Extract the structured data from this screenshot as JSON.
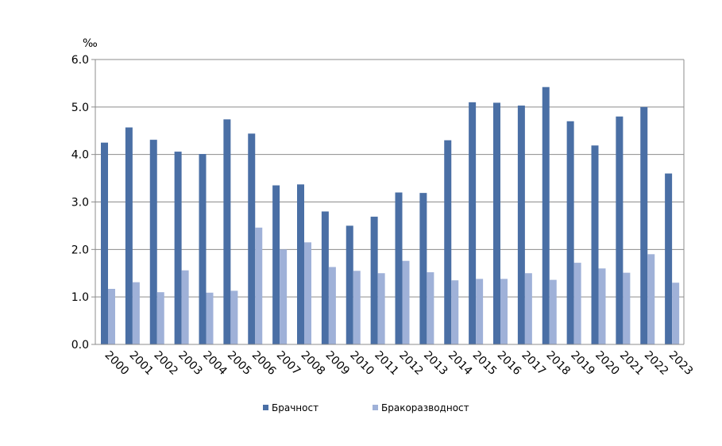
{
  "chart_data": {
    "type": "bar",
    "unit_label": "‰",
    "categories": [
      "2000",
      "2001",
      "2002",
      "2003",
      "2004",
      "2005",
      "2006",
      "2007",
      "2008",
      "2009",
      "2010",
      "2011",
      "2012",
      "2013",
      "2014",
      "2015",
      "2016",
      "2017",
      "2018",
      "2019",
      "2020",
      "2021",
      "2022",
      "2023"
    ],
    "series": [
      {
        "name": "Брачност",
        "color": "#4a6fa5",
        "values": [
          4.25,
          4.57,
          4.31,
          4.06,
          4.01,
          4.74,
          4.44,
          3.35,
          3.37,
          2.8,
          2.5,
          2.69,
          3.2,
          3.19,
          4.3,
          5.1,
          5.09,
          5.03,
          5.42,
          4.7,
          4.19,
          4.8,
          5.0,
          3.6
        ]
      },
      {
        "name": "Бракоразводност",
        "color": "#9fb1d8",
        "values": [
          1.17,
          1.31,
          1.1,
          1.56,
          1.09,
          1.13,
          2.46,
          2.0,
          2.15,
          1.63,
          1.55,
          1.5,
          1.76,
          1.52,
          1.35,
          1.38,
          1.38,
          1.5,
          1.36,
          1.72,
          1.6,
          1.51,
          1.9,
          1.3
        ]
      }
    ],
    "yticks": [
      "0.0",
      "1.0",
      "2.0",
      "3.0",
      "4.0",
      "5.0",
      "6.0"
    ],
    "ylim": [
      0,
      6
    ],
    "grid": true,
    "legend_position": "bottom"
  }
}
